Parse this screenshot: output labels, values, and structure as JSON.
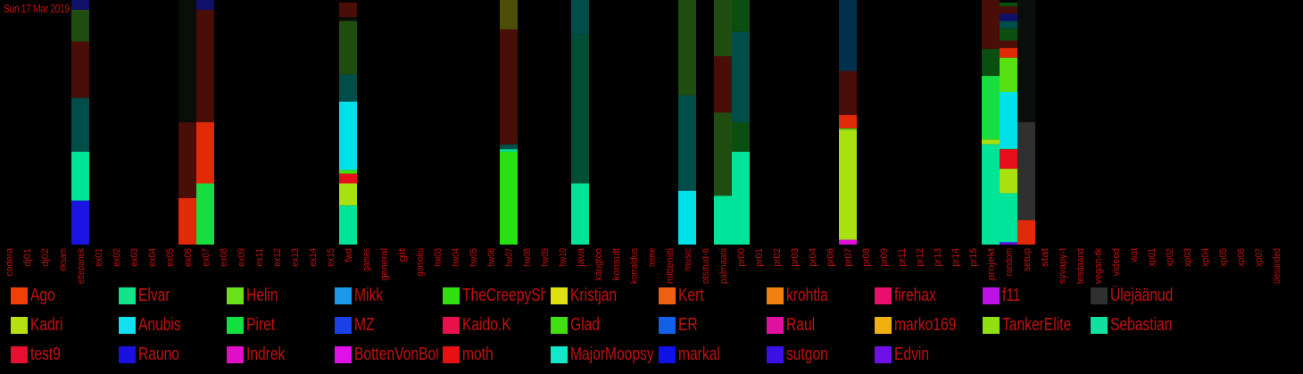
{
  "date_label": "Sun 17 Mar 2019",
  "chart_data": {
    "type": "bar",
    "stacked": true,
    "value_unit": "fraction",
    "categories": [
      "codera",
      "dj01",
      "dj02",
      "eksam",
      "ettepanek",
      "ex01",
      "ex02",
      "ex03",
      "ex04",
      "ex05",
      "ex06",
      "ex07",
      "ex08",
      "ex09",
      "ex11",
      "ex12",
      "ex13",
      "ex14",
      "ex15",
      "fwd",
      "games",
      "general",
      "git",
      "gomoku",
      "hw03",
      "hw04",
      "hw05",
      "hw06",
      "hw07",
      "hw08",
      "hw09",
      "hw10",
      "java",
      "kaugtöö",
      "konsult",
      "korraldus",
      "meme",
      "mitteniiti",
      "music",
      "otsitud-ti",
      "palmaani",
      "pr00",
      "pr01",
      "pr02",
      "pr03",
      "pr04",
      "pr06",
      "pr07",
      "pr08",
      "pr09",
      "pr11",
      "pr12",
      "pr13",
      "pr14",
      "pr15",
      "projekt",
      "random",
      "setup",
      "stat",
      "syvapy-t",
      "teadaand",
      "vegan-tk",
      "videod",
      "wat",
      "xp01",
      "xp02",
      "xp03",
      "xp04",
      "xp05",
      "xp06",
      "xp07",
      "ülesanded"
    ],
    "bars": [
      {
        "category": "ettepanek",
        "segments": [
          {
            "color": "#1a14e0",
            "value": 0.18
          },
          {
            "color": "#00e49a",
            "value": 0.2
          },
          {
            "color": "#004e4a",
            "value": 0.22
          },
          {
            "color": "#4a0e08",
            "value": 0.23
          },
          {
            "color": "#1f4e10",
            "value": 0.13
          },
          {
            "color": "#10106a",
            "value": 0.04
          }
        ]
      },
      {
        "category": "ex06",
        "segments": [
          {
            "color": "#e22a08",
            "value": 0.19
          },
          {
            "color": "#4a0e08",
            "value": 0.31
          },
          {
            "color": "#0a0e0a",
            "value": 0.5
          }
        ]
      },
      {
        "category": "ex07",
        "segments": [
          {
            "color": "#16de40",
            "value": 0.25
          },
          {
            "color": "#e22a08",
            "value": 0.25
          },
          {
            "color": "#4a0e08",
            "value": 0.46
          },
          {
            "color": "#10106a",
            "value": 0.04
          }
        ]
      },
      {
        "category": "fwd",
        "segments": [
          {
            "color": "#00e49a",
            "value": 0.16
          },
          {
            "color": "#a8e010",
            "value": 0.09
          },
          {
            "color": "#e6101c",
            "value": 0.04
          },
          {
            "color": "#3ee010",
            "value": 0.015
          },
          {
            "color": "#00e0e8",
            "value": 0.28
          },
          {
            "color": "#004e4a",
            "value": 0.11
          },
          {
            "color": "#1f4e10",
            "value": 0.22
          },
          {
            "color": "#0a0e0a",
            "value": 0.015
          },
          {
            "color": "#4a0e08",
            "value": 0.06
          }
        ]
      },
      {
        "category": "hw07",
        "segments": [
          {
            "color": "#26e012",
            "value": 0.38
          },
          {
            "color": "#00e49a",
            "value": 0.01
          },
          {
            "color": "#004e4a",
            "value": 0.02
          },
          {
            "color": "#4a0e08",
            "value": 0.47
          },
          {
            "color": "#4e4e08",
            "value": 0.12
          }
        ]
      },
      {
        "category": "java",
        "segments": [
          {
            "color": "#00e49a",
            "value": 0.25
          },
          {
            "color": "#004e36",
            "value": 0.61
          },
          {
            "color": "#004e4a",
            "value": 0.14
          }
        ]
      },
      {
        "category": "music",
        "segments": [
          {
            "color": "#00e0e8",
            "value": 0.22
          },
          {
            "color": "#004e4a",
            "value": 0.39
          },
          {
            "color": "#1f4e10",
            "value": 0.39
          }
        ]
      },
      {
        "category": "palmaani",
        "segments": [
          {
            "color": "#00e49a",
            "value": 0.2
          },
          {
            "color": "#1f4e10",
            "value": 0.34
          },
          {
            "color": "#4a0e08",
            "value": 0.23
          },
          {
            "color": "#1f4e10",
            "value": 0.23
          }
        ]
      },
      {
        "category": "pr00",
        "segments": [
          {
            "color": "#00e49a",
            "value": 0.38
          },
          {
            "color": "#0a4e10",
            "value": 0.12
          },
          {
            "color": "#004e4a",
            "value": 0.37
          },
          {
            "color": "#0a4e10",
            "value": 0.13
          }
        ]
      },
      {
        "category": "pr07",
        "segments": [
          {
            "color": "#e010d8",
            "value": 0.02
          },
          {
            "color": "#a8e010",
            "value": 0.45
          },
          {
            "color": "#3ee010",
            "value": 0.005
          },
          {
            "color": "#e22a08",
            "value": 0.055
          },
          {
            "color": "#4a0e08",
            "value": 0.18
          },
          {
            "color": "#00324e",
            "value": 0.29
          }
        ]
      },
      {
        "category": "projekt",
        "segments": [
          {
            "color": "#00e49a",
            "value": 0.41
          },
          {
            "color": "#a8e010",
            "value": 0.02
          },
          {
            "color": "#16de40",
            "value": 0.26
          },
          {
            "color": "#0a4e10",
            "value": 0.11
          },
          {
            "color": "#4a0e08",
            "value": 0.2
          }
        ]
      },
      {
        "category": "random",
        "segments": [
          {
            "color": "#6010e8",
            "value": 0.01
          },
          {
            "color": "#00e49a",
            "value": 0.2
          },
          {
            "color": "#a8e010",
            "value": 0.1
          },
          {
            "color": "#e6101c",
            "value": 0.08
          },
          {
            "color": "#00e49a",
            "value": 0.004
          },
          {
            "color": "#00e0e8",
            "value": 0.23
          },
          {
            "color": "#56e012",
            "value": 0.14
          },
          {
            "color": "#e22a08",
            "value": 0.04
          },
          {
            "color": "#4a0e08",
            "value": 0.03
          },
          {
            "color": "#0a4e10",
            "value": 0.05
          },
          {
            "color": "#004e4a",
            "value": 0.03
          },
          {
            "color": "#10106a",
            "value": 0.03
          },
          {
            "color": "#4a0e08",
            "value": 0.03
          },
          {
            "color": "#0a4e10",
            "value": 0.016
          }
        ]
      },
      {
        "category": "setup",
        "segments": [
          {
            "color": "#e22a08",
            "value": 0.1
          },
          {
            "color": "#303030",
            "value": 0.4
          },
          {
            "color": "#0a0e0a",
            "value": 0.5
          }
        ]
      }
    ],
    "legend": [
      {
        "name": "Ago",
        "color": "#f04008"
      },
      {
        "name": "Elvar",
        "color": "#10e48a"
      },
      {
        "name": "Helin",
        "color": "#6ae01a"
      },
      {
        "name": "Mikk",
        "color": "#1a9ae8"
      },
      {
        "name": "TheCreepySh",
        "color": "#30e010"
      },
      {
        "name": "Kristjan",
        "color": "#e0e010"
      },
      {
        "name": "Kert",
        "color": "#f06010"
      },
      {
        "name": "krohtla",
        "color": "#f08010"
      },
      {
        "name": "firehax",
        "color": "#e8106a"
      },
      {
        "name": "f11",
        "color": "#c010e8"
      },
      {
        "name": "Ülejäänud",
        "color": "#303030"
      },
      {
        "name": "Kadri",
        "color": "#b8e010"
      },
      {
        "name": "Anubis",
        "color": "#10e0f0"
      },
      {
        "name": "Piret",
        "color": "#10e040"
      },
      {
        "name": "MZ",
        "color": "#1a40e8"
      },
      {
        "name": "Kaido.K",
        "color": "#e8104a"
      },
      {
        "name": "Glad",
        "color": "#40e010"
      },
      {
        "name": "ER",
        "color": "#1060e8"
      },
      {
        "name": "Raul",
        "color": "#e010a0"
      },
      {
        "name": "marko169",
        "color": "#f0b010"
      },
      {
        "name": "TankerElite",
        "color": "#90e010"
      },
      {
        "name": "Sebastian",
        "color": "#10e0a0"
      },
      {
        "name": "test9",
        "color": "#e81030"
      },
      {
        "name": "Rauno",
        "color": "#1a10e0"
      },
      {
        "name": "Indrek",
        "color": "#e010c8"
      },
      {
        "name": "BottenVonBot",
        "color": "#e010e8"
      },
      {
        "name": "moth",
        "color": "#e81010"
      },
      {
        "name": "MajorMoopsy",
        "color": "#10e8c8"
      },
      {
        "name": "markal",
        "color": "#1010e8"
      },
      {
        "name": "sutgon",
        "color": "#3a10e8"
      },
      {
        "name": "Edvin",
        "color": "#7010e8"
      }
    ]
  }
}
